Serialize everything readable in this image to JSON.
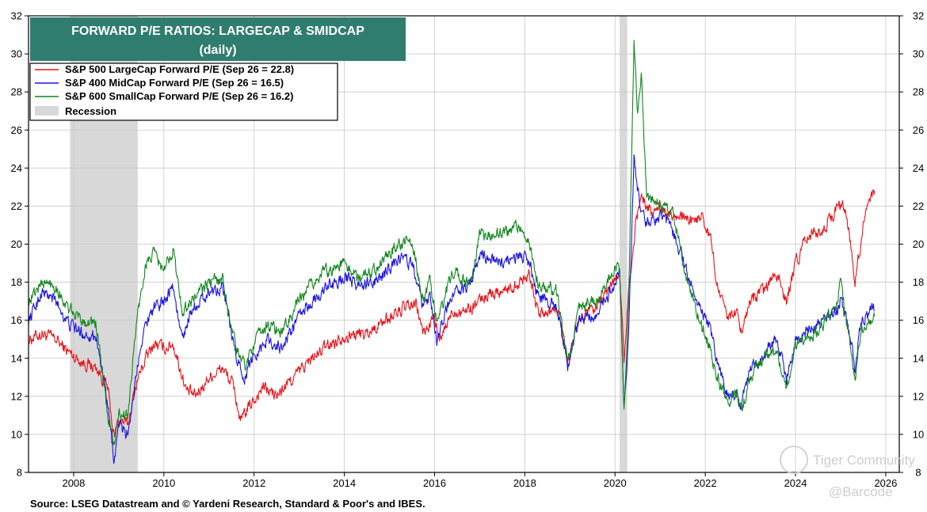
{
  "chart_data": {
    "type": "line",
    "title": "FORWARD P/E RATIOS: LARGECAP & SMIDCAP",
    "subtitle": "(daily)",
    "xlabel": "",
    "ylabel": "",
    "x_ticks": [
      "2008",
      "2010",
      "2012",
      "2014",
      "2016",
      "2018",
      "2020",
      "2022",
      "2024",
      "2026"
    ],
    "xlim": [
      2007.0,
      2026.3
    ],
    "ylim": [
      8,
      32
    ],
    "y_ticks": [
      8,
      10,
      12,
      14,
      16,
      18,
      20,
      22,
      24,
      26,
      28,
      30,
      32
    ],
    "grid": true,
    "legend_position": "top-left",
    "recession_label": "Recession",
    "recessions": [
      [
        2007.92,
        2009.42
      ],
      [
        2020.1,
        2020.27
      ]
    ],
    "series": [
      {
        "name": "S&P 500 LargeCap Forward P/E (Sep 26 = 22.8)",
        "color": "#e8141a",
        "points": [
          [
            2007.0,
            15.0
          ],
          [
            2007.3,
            15.3
          ],
          [
            2007.6,
            15.0
          ],
          [
            2007.9,
            14.3
          ],
          [
            2008.2,
            13.8
          ],
          [
            2008.5,
            13.5
          ],
          [
            2008.75,
            12.5
          ],
          [
            2008.9,
            9.8
          ],
          [
            2009.0,
            10.8
          ],
          [
            2009.2,
            10.5
          ],
          [
            2009.4,
            12.8
          ],
          [
            2009.6,
            14.0
          ],
          [
            2009.8,
            14.8
          ],
          [
            2010.0,
            14.5
          ],
          [
            2010.2,
            14.8
          ],
          [
            2010.5,
            12.3
          ],
          [
            2010.7,
            12.0
          ],
          [
            2011.0,
            13.0
          ],
          [
            2011.3,
            13.5
          ],
          [
            2011.55,
            12.5
          ],
          [
            2011.7,
            10.6
          ],
          [
            2011.85,
            11.3
          ],
          [
            2012.2,
            12.5
          ],
          [
            2012.5,
            12.0
          ],
          [
            2012.8,
            12.8
          ],
          [
            2013.2,
            13.8
          ],
          [
            2013.6,
            14.6
          ],
          [
            2014.0,
            15.2
          ],
          [
            2014.5,
            15.3
          ],
          [
            2014.9,
            16.0
          ],
          [
            2015.3,
            16.6
          ],
          [
            2015.6,
            16.8
          ],
          [
            2015.75,
            15.3
          ],
          [
            2016.0,
            16.2
          ],
          [
            2016.1,
            14.8
          ],
          [
            2016.4,
            16.5
          ],
          [
            2016.8,
            16.6
          ],
          [
            2017.2,
            17.4
          ],
          [
            2017.6,
            17.6
          ],
          [
            2018.0,
            18.2
          ],
          [
            2018.1,
            18.6
          ],
          [
            2018.3,
            16.3
          ],
          [
            2018.75,
            16.6
          ],
          [
            2018.95,
            13.8
          ],
          [
            2019.2,
            16.0
          ],
          [
            2019.6,
            16.6
          ],
          [
            2019.9,
            17.8
          ],
          [
            2020.1,
            18.6
          ],
          [
            2020.2,
            14.0
          ],
          [
            2020.3,
            17.5
          ],
          [
            2020.45,
            21.0
          ],
          [
            2020.6,
            22.6
          ],
          [
            2020.8,
            21.6
          ],
          [
            2021.0,
            22.0
          ],
          [
            2021.3,
            21.6
          ],
          [
            2021.6,
            21.2
          ],
          [
            2021.9,
            21.4
          ],
          [
            2022.1,
            20.5
          ],
          [
            2022.3,
            17.5
          ],
          [
            2022.5,
            16.0
          ],
          [
            2022.7,
            16.5
          ],
          [
            2022.8,
            15.4
          ],
          [
            2023.0,
            17.0
          ],
          [
            2023.3,
            17.5
          ],
          [
            2023.6,
            18.5
          ],
          [
            2023.8,
            17.0
          ],
          [
            2024.0,
            19.0
          ],
          [
            2024.3,
            20.5
          ],
          [
            2024.6,
            20.8
          ],
          [
            2024.9,
            21.8
          ],
          [
            2025.1,
            22.0
          ],
          [
            2025.25,
            19.5
          ],
          [
            2025.32,
            18.0
          ],
          [
            2025.5,
            21.0
          ],
          [
            2025.75,
            22.8
          ]
        ]
      },
      {
        "name": "S&P 400 MidCap Forward P/E (Sep 26 = 16.5)",
        "color": "#1c14e0",
        "points": [
          [
            2007.0,
            16.0
          ],
          [
            2007.3,
            17.5
          ],
          [
            2007.6,
            17.0
          ],
          [
            2007.9,
            15.8
          ],
          [
            2008.2,
            15.3
          ],
          [
            2008.5,
            15.2
          ],
          [
            2008.75,
            11.5
          ],
          [
            2008.9,
            8.6
          ],
          [
            2009.0,
            10.5
          ],
          [
            2009.2,
            10.0
          ],
          [
            2009.5,
            15.0
          ],
          [
            2009.7,
            16.5
          ],
          [
            2009.9,
            16.8
          ],
          [
            2010.2,
            17.8
          ],
          [
            2010.4,
            15.0
          ],
          [
            2010.6,
            16.5
          ],
          [
            2011.0,
            17.5
          ],
          [
            2011.3,
            17.8
          ],
          [
            2011.6,
            14.0
          ],
          [
            2011.8,
            13.0
          ],
          [
            2012.0,
            14.2
          ],
          [
            2012.3,
            15.0
          ],
          [
            2012.6,
            14.5
          ],
          [
            2013.0,
            16.2
          ],
          [
            2013.5,
            17.5
          ],
          [
            2014.0,
            18.3
          ],
          [
            2014.3,
            17.8
          ],
          [
            2014.7,
            18.0
          ],
          [
            2015.2,
            19.3
          ],
          [
            2015.5,
            19.0
          ],
          [
            2015.75,
            16.5
          ],
          [
            2015.9,
            17.5
          ],
          [
            2016.05,
            15.0
          ],
          [
            2016.4,
            17.5
          ],
          [
            2016.8,
            17.8
          ],
          [
            2017.0,
            19.5
          ],
          [
            2017.5,
            19.0
          ],
          [
            2017.9,
            19.5
          ],
          [
            2018.1,
            19.0
          ],
          [
            2018.3,
            17.2
          ],
          [
            2018.7,
            16.8
          ],
          [
            2018.95,
            13.5
          ],
          [
            2019.2,
            16.0
          ],
          [
            2019.6,
            16.2
          ],
          [
            2019.9,
            17.5
          ],
          [
            2020.1,
            18.5
          ],
          [
            2020.2,
            11.2
          ],
          [
            2020.3,
            15.0
          ],
          [
            2020.42,
            24.5
          ],
          [
            2020.55,
            22.0
          ],
          [
            2020.7,
            21.0
          ],
          [
            2021.0,
            21.5
          ],
          [
            2021.3,
            20.5
          ],
          [
            2021.6,
            18.5
          ],
          [
            2021.9,
            16.5
          ],
          [
            2022.1,
            15.5
          ],
          [
            2022.3,
            13.5
          ],
          [
            2022.5,
            12.2
          ],
          [
            2022.7,
            12.0
          ],
          [
            2022.8,
            11.6
          ],
          [
            2023.0,
            13.5
          ],
          [
            2023.3,
            14.2
          ],
          [
            2023.6,
            15.0
          ],
          [
            2023.8,
            12.8
          ],
          [
            2024.0,
            14.8
          ],
          [
            2024.3,
            15.5
          ],
          [
            2024.6,
            15.8
          ],
          [
            2024.9,
            16.5
          ],
          [
            2025.0,
            17.0
          ],
          [
            2025.25,
            15.0
          ],
          [
            2025.32,
            13.2
          ],
          [
            2025.45,
            16.0
          ],
          [
            2025.6,
            16.4
          ],
          [
            2025.75,
            16.5
          ]
        ]
      },
      {
        "name": "S&P 600 SmallCap Forward P/E (Sep 26 = 16.2)",
        "color": "#11861d",
        "points": [
          [
            2007.0,
            17.0
          ],
          [
            2007.3,
            18.0
          ],
          [
            2007.6,
            17.8
          ],
          [
            2007.9,
            16.5
          ],
          [
            2008.2,
            16.0
          ],
          [
            2008.5,
            15.8
          ],
          [
            2008.75,
            11.0
          ],
          [
            2008.9,
            9.5
          ],
          [
            2009.0,
            11.0
          ],
          [
            2009.2,
            11.0
          ],
          [
            2009.4,
            16.0
          ],
          [
            2009.6,
            19.0
          ],
          [
            2009.8,
            19.5
          ],
          [
            2010.0,
            18.5
          ],
          [
            2010.2,
            19.8
          ],
          [
            2010.4,
            16.5
          ],
          [
            2010.6,
            17.0
          ],
          [
            2011.0,
            18.0
          ],
          [
            2011.3,
            18.2
          ],
          [
            2011.6,
            14.5
          ],
          [
            2011.8,
            13.6
          ],
          [
            2012.0,
            14.8
          ],
          [
            2012.3,
            15.8
          ],
          [
            2012.6,
            15.3
          ],
          [
            2013.0,
            17.0
          ],
          [
            2013.5,
            18.5
          ],
          [
            2014.0,
            19.0
          ],
          [
            2014.3,
            18.2
          ],
          [
            2014.7,
            18.8
          ],
          [
            2015.2,
            20.0
          ],
          [
            2015.5,
            20.2
          ],
          [
            2015.75,
            17.0
          ],
          [
            2015.9,
            18.0
          ],
          [
            2016.05,
            15.8
          ],
          [
            2016.4,
            18.5
          ],
          [
            2016.8,
            18.0
          ],
          [
            2017.0,
            20.5
          ],
          [
            2017.5,
            20.5
          ],
          [
            2017.9,
            21.0
          ],
          [
            2018.1,
            20.0
          ],
          [
            2018.3,
            18.0
          ],
          [
            2018.7,
            17.5
          ],
          [
            2018.95,
            13.8
          ],
          [
            2019.2,
            16.5
          ],
          [
            2019.6,
            17.0
          ],
          [
            2019.9,
            18.5
          ],
          [
            2020.1,
            18.8
          ],
          [
            2020.2,
            11.5
          ],
          [
            2020.3,
            17.0
          ],
          [
            2020.42,
            30.5
          ],
          [
            2020.5,
            27.0
          ],
          [
            2020.58,
            29.0
          ],
          [
            2020.7,
            22.5
          ],
          [
            2021.0,
            22.0
          ],
          [
            2021.3,
            21.5
          ],
          [
            2021.6,
            18.0
          ],
          [
            2021.9,
            16.0
          ],
          [
            2022.1,
            14.5
          ],
          [
            2022.3,
            12.8
          ],
          [
            2022.5,
            11.5
          ],
          [
            2022.7,
            12.3
          ],
          [
            2022.8,
            11.3
          ],
          [
            2023.0,
            13.0
          ],
          [
            2023.3,
            14.0
          ],
          [
            2023.6,
            14.5
          ],
          [
            2023.8,
            12.2
          ],
          [
            2024.0,
            14.5
          ],
          [
            2024.3,
            15.0
          ],
          [
            2024.6,
            15.8
          ],
          [
            2024.9,
            16.5
          ],
          [
            2025.0,
            18.0
          ],
          [
            2025.25,
            14.0
          ],
          [
            2025.32,
            12.8
          ],
          [
            2025.45,
            15.5
          ],
          [
            2025.6,
            16.0
          ],
          [
            2025.75,
            16.2
          ]
        ]
      }
    ]
  },
  "source": "Source: LSEG Datastream and © Yardeni Research, Standard & Poor's and IBES.",
  "watermark": {
    "brand": "Tiger Community",
    "handle": "@Barcode"
  },
  "colors": {
    "title_bg": "#2f7d6e",
    "recession": "#d8d8d8",
    "grid": "#c8c8c8"
  }
}
